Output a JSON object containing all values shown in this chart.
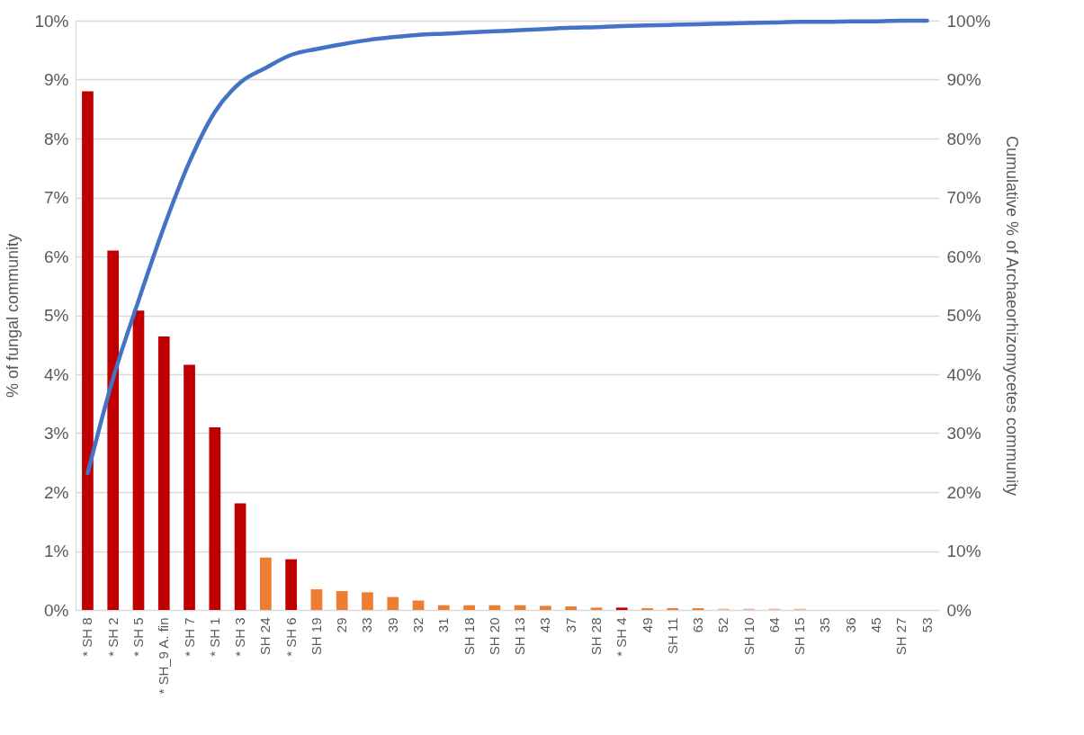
{
  "chart_data": {
    "type": "bar",
    "ylabel": "% of fungal community",
    "y2label": "Cumulative % of Archaeorhizomycetes community",
    "categories": [
      "* SH 8",
      "* SH 2",
      "* SH 5",
      "* SH_9 A. fin",
      "* SH 7",
      "* SH 1",
      "* SH 3",
      "SH 24",
      "* SH 6",
      "SH 19",
      "29",
      "33",
      "39",
      "32",
      "31",
      "SH 18",
      "SH 20",
      "SH 13",
      "43",
      "37",
      "SH 28",
      "* SH 4",
      "49",
      "SH 11",
      "63",
      "52",
      "SH 10",
      "64",
      "SH 15",
      "35",
      "36",
      "45",
      "SH 27",
      "53"
    ],
    "series": [
      {
        "values": [
          8.8,
          6.1,
          5.08,
          4.64,
          4.16,
          3.1,
          1.81,
          0.89,
          0.86,
          0.35,
          0.32,
          0.3,
          0.22,
          0.16,
          0.08,
          0.08,
          0.08,
          0.08,
          0.07,
          0.06,
          0.04,
          0.04,
          0.03,
          0.03,
          0.03,
          0.02,
          0.02,
          0.02,
          0.02,
          0,
          0,
          0,
          0,
          0
        ],
        "colors": [
          "#c00000",
          "#c00000",
          "#c00000",
          "#c00000",
          "#c00000",
          "#c00000",
          "#c00000",
          "#ed7d31",
          "#c00000",
          "#ed7d31",
          "#ed7d31",
          "#ed7d31",
          "#ed7d31",
          "#ed7d31",
          "#ed7d31",
          "#ed7d31",
          "#ed7d31",
          "#ed7d31",
          "#ed7d31",
          "#ed7d31",
          "#ed7d31",
          "#c00000",
          "#ed7d31",
          "#ed7d31",
          "#ed7d31",
          "#f4b183",
          "#f4b183",
          "#f4b183",
          "#f4b183",
          "#f4b183",
          "#f4b183",
          "#f4b183",
          "#f4b183",
          "#f4b183"
        ]
      },
      {
        "type": "line",
        "axis": "y2",
        "color": "#4472c4",
        "values": [
          23.2,
          39.3,
          52.5,
          65,
          76,
          84.5,
          89.5,
          92,
          94.2,
          95.2,
          96,
          96.7,
          97.2,
          97.6,
          97.8,
          98,
          98.2,
          98.4,
          98.6,
          98.8,
          98.9,
          99.1,
          99.2,
          99.3,
          99.4,
          99.5,
          99.6,
          99.7,
          99.8,
          99.8,
          99.9,
          99.9,
          100,
          100
        ]
      }
    ],
    "ylim": [
      0,
      10
    ],
    "yticks": [
      {
        "value": 0,
        "label": "0%"
      },
      {
        "value": 1,
        "label": "1%"
      },
      {
        "value": 2,
        "label": "2%"
      },
      {
        "value": 3,
        "label": "3%"
      },
      {
        "value": 4,
        "label": "4%"
      },
      {
        "value": 5,
        "label": "5%"
      },
      {
        "value": 6,
        "label": "6%"
      },
      {
        "value": 7,
        "label": "7%"
      },
      {
        "value": 8,
        "label": "8%"
      },
      {
        "value": 9,
        "label": "9%"
      },
      {
        "value": 10,
        "label": "10%"
      }
    ],
    "y2lim": [
      0,
      100
    ],
    "y2ticks": [
      {
        "value": 0,
        "label": "0%"
      },
      {
        "value": 10,
        "label": "10%"
      },
      {
        "value": 20,
        "label": "20%"
      },
      {
        "value": 30,
        "label": "30%"
      },
      {
        "value": 40,
        "label": "40%"
      },
      {
        "value": 50,
        "label": "50%"
      },
      {
        "value": 60,
        "label": "60%"
      },
      {
        "value": 70,
        "label": "70%"
      },
      {
        "value": 80,
        "label": "80%"
      },
      {
        "value": 90,
        "label": "90%"
      },
      {
        "value": 100,
        "label": "100%"
      }
    ],
    "grid": "y"
  }
}
